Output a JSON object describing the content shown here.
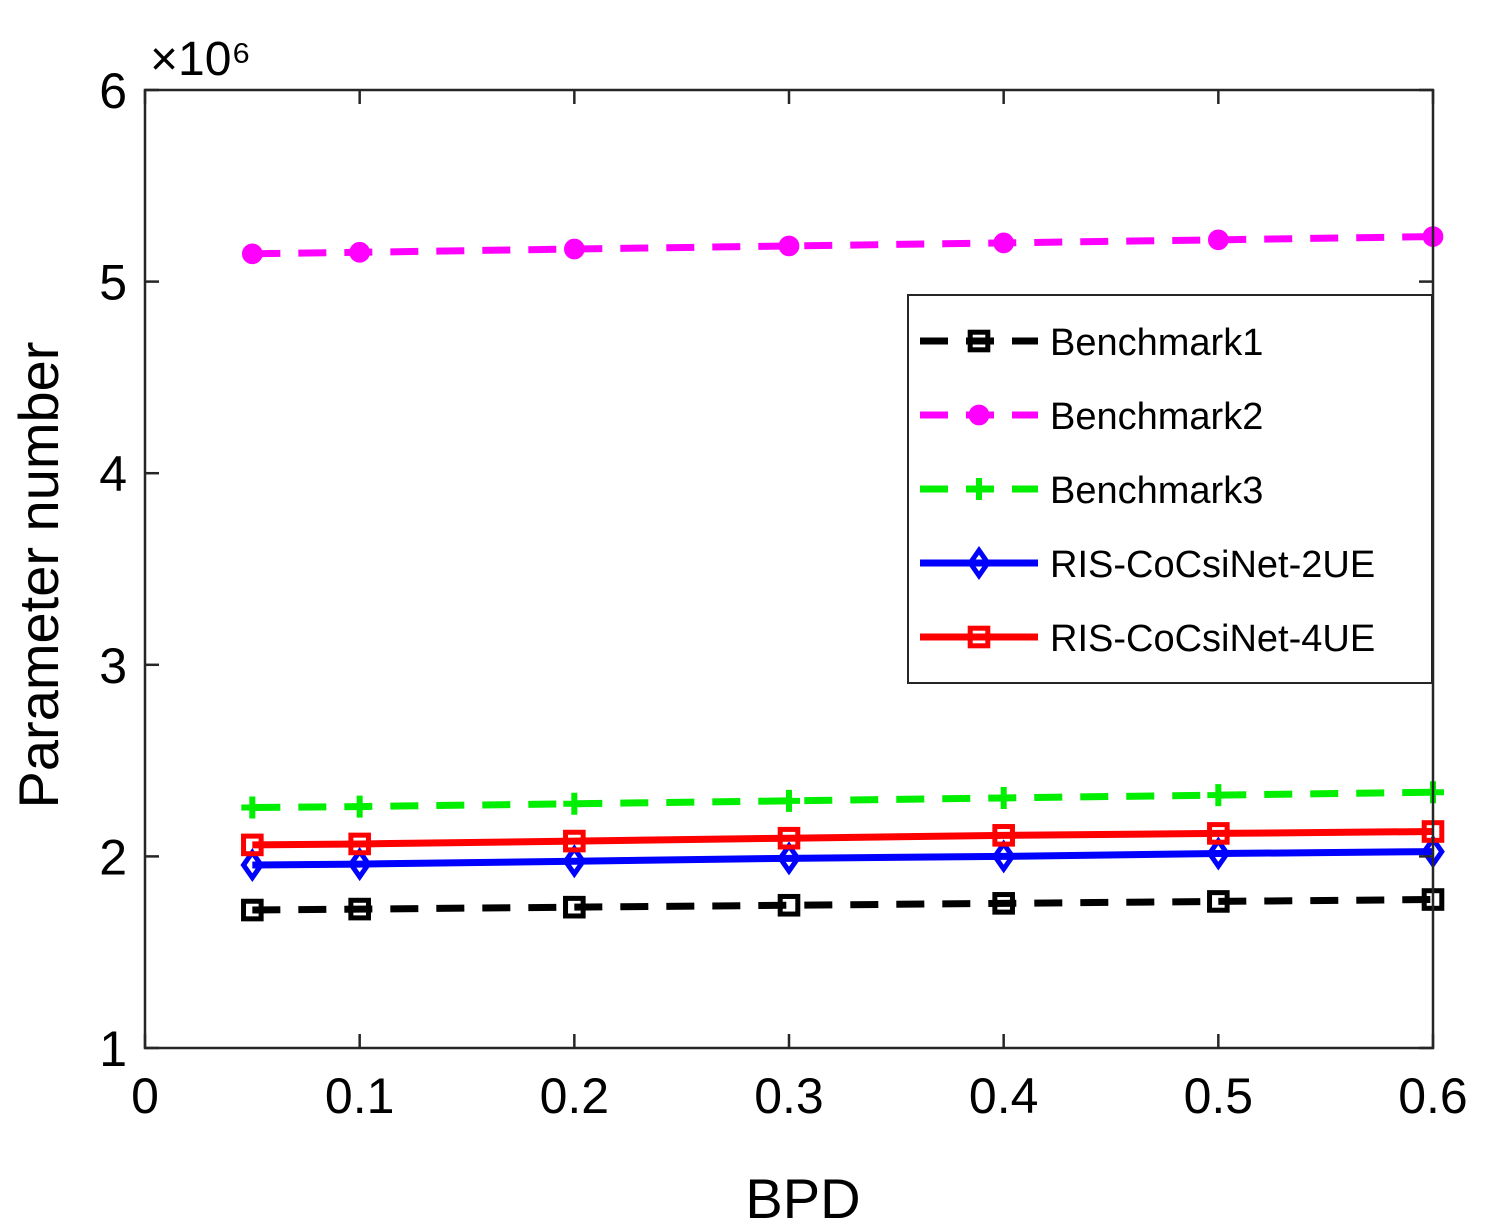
{
  "chart_data": {
    "type": "line",
    "title": "",
    "xlabel": "BPD",
    "ylabel": "Parameter number",
    "xlim": [
      0,
      0.6
    ],
    "ylim": [
      1,
      6
    ],
    "y_scale_label": "×10⁶",
    "y_scale_multiplier": 1000000,
    "xticks": [
      0,
      0.1,
      0.2,
      0.3,
      0.4,
      0.5,
      0.6
    ],
    "xtick_labels": [
      "0",
      "0.1",
      "0.2",
      "0.3",
      "0.4",
      "0.5",
      "0.6"
    ],
    "yticks": [
      1,
      2,
      3,
      4,
      5,
      6
    ],
    "ytick_labels": [
      "1",
      "2",
      "3",
      "4",
      "5",
      "6"
    ],
    "grid": false,
    "legend_position": "right",
    "x": [
      0.05,
      0.1,
      0.2,
      0.3,
      0.4,
      0.5,
      0.6
    ],
    "series": [
      {
        "name": "Benchmark1",
        "color": "#000000",
        "line_style": "dashed",
        "marker": "square",
        "values": [
          1.72,
          1.725,
          1.735,
          1.745,
          1.755,
          1.765,
          1.775
        ]
      },
      {
        "name": "Benchmark2",
        "color": "#ff00ff",
        "line_style": "dashed",
        "marker": "circle",
        "values": [
          5.145,
          5.153,
          5.17,
          5.186,
          5.202,
          5.218,
          5.235
        ]
      },
      {
        "name": "Benchmark3",
        "color": "#00ee00",
        "line_style": "dashed",
        "marker": "plus",
        "values": [
          2.255,
          2.26,
          2.275,
          2.29,
          2.305,
          2.32,
          2.335
        ]
      },
      {
        "name": "RIS-CoCsiNet-2UE",
        "color": "#0000ff",
        "line_style": "solid",
        "marker": "diamond",
        "values": [
          1.955,
          1.96,
          1.975,
          1.99,
          2.0,
          2.015,
          2.025
        ]
      },
      {
        "name": "RIS-CoCsiNet-4UE",
        "color": "#ff0000",
        "line_style": "solid",
        "marker": "square",
        "values": [
          2.06,
          2.065,
          2.08,
          2.095,
          2.11,
          2.12,
          2.13
        ]
      }
    ]
  }
}
